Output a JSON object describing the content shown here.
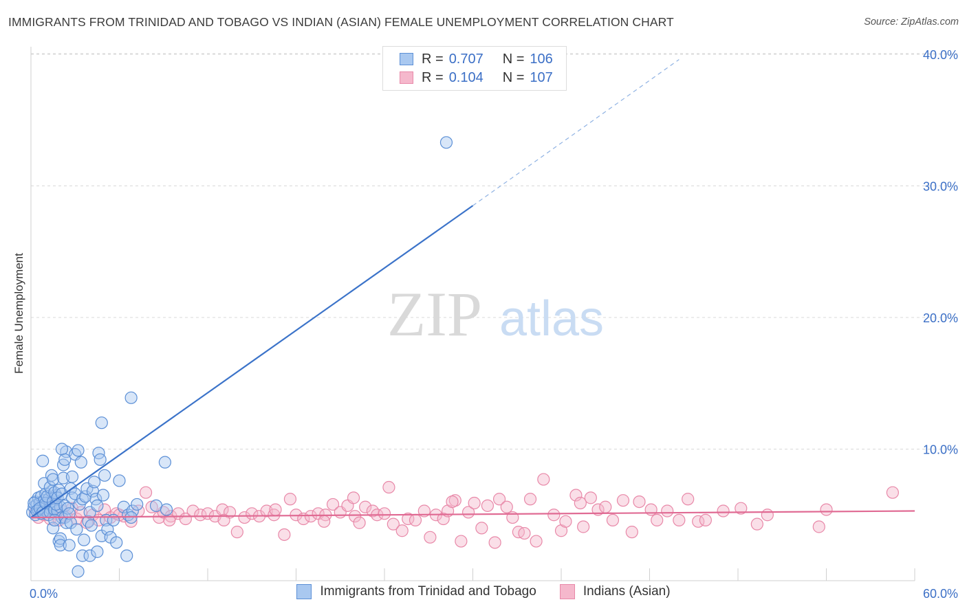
{
  "header": {
    "title": "IMMIGRANTS FROM TRINIDAD AND TOBAGO VS INDIAN (ASIAN) FEMALE UNEMPLOYMENT CORRELATION CHART",
    "source": "Source: ZipAtlas.com"
  },
  "watermark": {
    "zip": "ZIP",
    "atlas": "atlas"
  },
  "stats": {
    "row1": {
      "r_label": "R =",
      "r_value": "0.707",
      "n_label": "N =",
      "n_value": "106"
    },
    "row2": {
      "r_label": "R =",
      "r_value": "0.104",
      "n_label": "N =",
      "n_value": "107"
    }
  },
  "colors": {
    "blue_fill": "#a9c8f0",
    "blue_stroke": "#5b8fd6",
    "blue_line": "#3b73c9",
    "pink_fill": "#f5b8cc",
    "pink_stroke": "#e888a8",
    "pink_line": "#e06a93",
    "grid": "#d8d8d8",
    "tick_label": "#3b6fc6"
  },
  "chart_data": {
    "type": "scatter",
    "ylabel": "Female Unemployment",
    "xlim": [
      0,
      60
    ],
    "ylim": [
      0,
      42
    ],
    "x_tick_labels": [
      "0.0%",
      "60.0%"
    ],
    "y_ticks": [
      10,
      20,
      30,
      40
    ],
    "y_tick_labels": [
      "10.0%",
      "20.0%",
      "30.0%",
      "40.0%"
    ],
    "legend_position": "bottom",
    "series": [
      {
        "name": "Immigrants from Trinidad and Tobago",
        "color": "#a9c8f0",
        "trend": {
          "x": [
            0,
            30
          ],
          "y": [
            4.8,
            28.5
          ],
          "dashed_to": [
            44,
            39.6
          ]
        },
        "points": [
          [
            0.1,
            5.2
          ],
          [
            0.2,
            5.6
          ],
          [
            0.3,
            6.0
          ],
          [
            0.3,
            5.0
          ],
          [
            0.4,
            5.8
          ],
          [
            0.5,
            6.3
          ],
          [
            0.5,
            5.4
          ],
          [
            0.6,
            5.9
          ],
          [
            0.7,
            6.4
          ],
          [
            0.7,
            5.1
          ],
          [
            0.8,
            5.6
          ],
          [
            0.9,
            6.1
          ],
          [
            1.0,
            5.3
          ],
          [
            1.0,
            6.6
          ],
          [
            1.1,
            5.8
          ],
          [
            1.2,
            5.0
          ],
          [
            1.2,
            6.2
          ],
          [
            1.3,
            5.5
          ],
          [
            1.4,
            6.8
          ],
          [
            1.5,
            5.7
          ],
          [
            0.2,
            5.9
          ],
          [
            0.4,
            5.3
          ],
          [
            0.6,
            5.5
          ],
          [
            0.8,
            5.2
          ],
          [
            1.0,
            5.9
          ],
          [
            1.1,
            6.4
          ],
          [
            1.3,
            5.2
          ],
          [
            1.5,
            6.0
          ],
          [
            1.6,
            5.4
          ],
          [
            1.7,
            6.5
          ],
          [
            0.9,
            7.4
          ],
          [
            0.8,
            9.1
          ],
          [
            1.3,
            7.1
          ],
          [
            1.4,
            8.0
          ],
          [
            1.5,
            7.7
          ],
          [
            1.6,
            6.7
          ],
          [
            1.8,
            5.3
          ],
          [
            1.9,
            6.9
          ],
          [
            2.0,
            5.6
          ],
          [
            2.1,
            4.8
          ],
          [
            1.5,
            4.0
          ],
          [
            1.6,
            4.6
          ],
          [
            1.7,
            5.8
          ],
          [
            1.8,
            6.3
          ],
          [
            1.9,
            3.0
          ],
          [
            2.0,
            3.2
          ],
          [
            2.1,
            6.6
          ],
          [
            2.2,
            7.8
          ],
          [
            2.3,
            5.7
          ],
          [
            2.4,
            9.8
          ],
          [
            2.3,
            4.8
          ],
          [
            2.4,
            4.4
          ],
          [
            2.5,
            5.5
          ],
          [
            2.6,
            5.1
          ],
          [
            2.7,
            7.0
          ],
          [
            2.8,
            6.3
          ],
          [
            2.0,
            2.7
          ],
          [
            2.1,
            10.0
          ],
          [
            2.2,
            8.8
          ],
          [
            2.3,
            9.2
          ],
          [
            2.6,
            2.7
          ],
          [
            2.7,
            4.4
          ],
          [
            2.8,
            7.9
          ],
          [
            3.0,
            9.6
          ],
          [
            3.0,
            6.6
          ],
          [
            3.1,
            3.9
          ],
          [
            3.2,
            9.9
          ],
          [
            3.3,
            5.8
          ],
          [
            3.4,
            9.0
          ],
          [
            3.5,
            6.2
          ],
          [
            3.6,
            3.1
          ],
          [
            3.7,
            6.4
          ],
          [
            3.8,
            7.0
          ],
          [
            3.9,
            4.5
          ],
          [
            4.0,
            5.2
          ],
          [
            4.1,
            4.2
          ],
          [
            4.2,
            6.8
          ],
          [
            4.3,
            7.5
          ],
          [
            4.4,
            6.2
          ],
          [
            4.5,
            5.7
          ],
          [
            4.6,
            9.7
          ],
          [
            4.7,
            9.2
          ],
          [
            4.8,
            3.4
          ],
          [
            4.9,
            6.5
          ],
          [
            5.0,
            8.0
          ],
          [
            5.1,
            4.6
          ],
          [
            3.5,
            1.9
          ],
          [
            4.0,
            1.9
          ],
          [
            4.5,
            2.2
          ],
          [
            5.2,
            3.9
          ],
          [
            5.4,
            3.3
          ],
          [
            5.6,
            4.6
          ],
          [
            5.8,
            2.9
          ],
          [
            6.0,
            7.6
          ],
          [
            6.3,
            5.6
          ],
          [
            6.6,
            5.0
          ],
          [
            6.9,
            5.3
          ],
          [
            6.5,
            1.9
          ],
          [
            7.2,
            5.8
          ],
          [
            4.8,
            12.0
          ],
          [
            3.2,
            0.7
          ],
          [
            6.8,
            4.8
          ],
          [
            8.5,
            5.7
          ],
          [
            9.2,
            5.4
          ],
          [
            6.8,
            13.9
          ],
          [
            9.1,
            9.0
          ],
          [
            28.2,
            33.3
          ]
        ]
      },
      {
        "name": "Indians (Asian)",
        "color": "#f5b8cc",
        "trend": {
          "x": [
            0,
            60
          ],
          "y": [
            4.8,
            5.3
          ]
        },
        "points": [
          [
            0.3,
            5.2
          ],
          [
            0.5,
            4.8
          ],
          [
            0.7,
            5.6
          ],
          [
            0.9,
            5.0
          ],
          [
            1.1,
            5.4
          ],
          [
            1.3,
            4.7
          ],
          [
            1.5,
            5.8
          ],
          [
            1.7,
            5.1
          ],
          [
            1.9,
            4.6
          ],
          [
            2.1,
            5.3
          ],
          [
            2.4,
            4.9
          ],
          [
            2.8,
            5.5
          ],
          [
            3.1,
            4.7
          ],
          [
            3.4,
            5.2
          ],
          [
            3.8,
            4.4
          ],
          [
            4.2,
            5.0
          ],
          [
            4.6,
            4.6
          ],
          [
            5.0,
            5.4
          ],
          [
            5.4,
            4.8
          ],
          [
            5.8,
            5.1
          ],
          [
            6.3,
            4.9
          ],
          [
            6.8,
            4.5
          ],
          [
            7.3,
            5.3
          ],
          [
            7.8,
            6.7
          ],
          [
            8.2,
            5.6
          ],
          [
            8.7,
            4.8
          ],
          [
            9.0,
            5.2
          ],
          [
            9.5,
            4.9
          ],
          [
            10.0,
            5.1
          ],
          [
            10.5,
            4.7
          ],
          [
            11.0,
            5.3
          ],
          [
            11.5,
            5.0
          ],
          [
            12.0,
            5.1
          ],
          [
            12.5,
            4.9
          ],
          [
            13.0,
            5.4
          ],
          [
            13.5,
            5.2
          ],
          [
            14.0,
            3.7
          ],
          [
            14.5,
            4.8
          ],
          [
            15.0,
            5.1
          ],
          [
            15.5,
            4.9
          ],
          [
            16.0,
            5.3
          ],
          [
            16.5,
            5.0
          ],
          [
            16.6,
            5.4
          ],
          [
            17.2,
            3.5
          ],
          [
            17.6,
            6.2
          ],
          [
            18.0,
            5.0
          ],
          [
            18.5,
            4.7
          ],
          [
            19.0,
            4.9
          ],
          [
            19.5,
            5.1
          ],
          [
            20.0,
            5.0
          ],
          [
            20.5,
            5.8
          ],
          [
            21.0,
            5.2
          ],
          [
            21.5,
            5.7
          ],
          [
            22.0,
            4.9
          ],
          [
            22.3,
            4.4
          ],
          [
            22.7,
            5.6
          ],
          [
            23.2,
            5.3
          ],
          [
            23.5,
            5.0
          ],
          [
            24.0,
            5.1
          ],
          [
            24.3,
            7.1
          ],
          [
            24.6,
            4.3
          ],
          [
            25.2,
            3.8
          ],
          [
            25.6,
            4.7
          ],
          [
            26.1,
            4.6
          ],
          [
            26.7,
            5.3
          ],
          [
            27.1,
            3.3
          ],
          [
            27.5,
            5.0
          ],
          [
            28.0,
            4.7
          ],
          [
            28.3,
            5.3
          ],
          [
            28.8,
            6.1
          ],
          [
            29.2,
            3.0
          ],
          [
            29.7,
            5.2
          ],
          [
            30.1,
            5.9
          ],
          [
            30.6,
            4.0
          ],
          [
            31.0,
            5.7
          ],
          [
            31.5,
            2.9
          ],
          [
            31.8,
            6.2
          ],
          [
            32.3,
            5.6
          ],
          [
            32.7,
            4.8
          ],
          [
            33.1,
            3.7
          ],
          [
            33.5,
            3.6
          ],
          [
            33.9,
            6.2
          ],
          [
            34.3,
            3.0
          ],
          [
            34.8,
            7.7
          ],
          [
            35.5,
            5.0
          ],
          [
            36.0,
            3.8
          ],
          [
            36.3,
            4.5
          ],
          [
            37.0,
            6.5
          ],
          [
            37.5,
            4.1
          ],
          [
            38.0,
            6.3
          ],
          [
            38.5,
            5.4
          ],
          [
            39.0,
            5.6
          ],
          [
            39.5,
            4.6
          ],
          [
            40.2,
            6.1
          ],
          [
            40.8,
            3.7
          ],
          [
            41.3,
            6.0
          ],
          [
            42.1,
            5.4
          ],
          [
            42.5,
            4.6
          ],
          [
            43.2,
            5.3
          ],
          [
            44.0,
            4.6
          ],
          [
            44.6,
            6.2
          ],
          [
            45.3,
            4.5
          ],
          [
            45.8,
            4.6
          ],
          [
            47.0,
            5.3
          ],
          [
            49.3,
            4.3
          ],
          [
            50.0,
            5.0
          ],
          [
            53.5,
            4.1
          ],
          [
            54.0,
            5.4
          ],
          [
            58.5,
            6.7
          ],
          [
            48.2,
            5.5
          ],
          [
            13.1,
            4.6
          ],
          [
            21.9,
            6.3
          ],
          [
            37.3,
            5.9
          ],
          [
            9.4,
            4.6
          ],
          [
            6.0,
            5.0
          ],
          [
            19.9,
            4.5
          ],
          [
            28.6,
            6.0
          ]
        ]
      }
    ]
  },
  "legend": {
    "items": [
      {
        "label": "Immigrants from Trinidad and Tobago"
      },
      {
        "label": "Indians (Asian)"
      }
    ]
  }
}
